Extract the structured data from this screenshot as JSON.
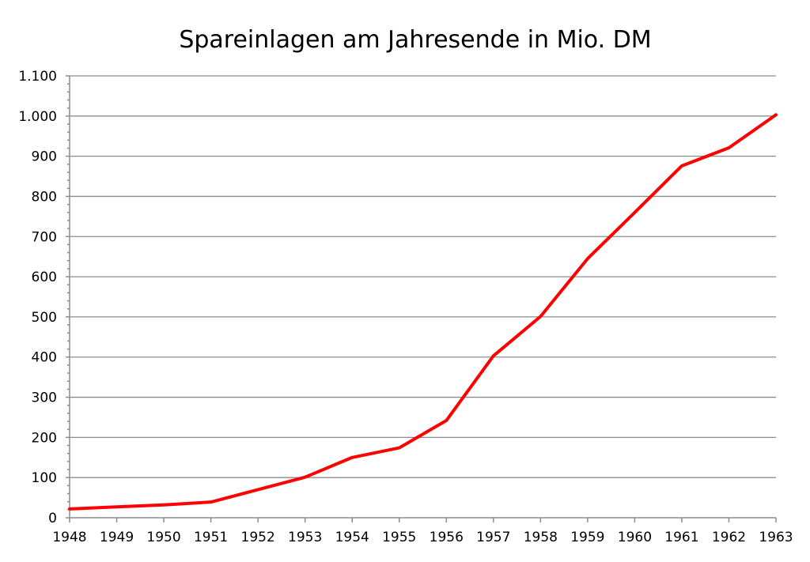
{
  "chart_data": {
    "type": "line",
    "title": "Spareinlagen am Jahresende in Mio. DM",
    "xlabel": "",
    "ylabel": "",
    "x": [
      "1948",
      "1949",
      "1950",
      "1951",
      "1952",
      "1953",
      "1954",
      "1955",
      "1956",
      "1957",
      "1958",
      "1959",
      "1960",
      "1961",
      "1962",
      "1963"
    ],
    "series": [
      {
        "name": "Spareinlagen",
        "color": "#ff0000",
        "values": [
          22,
          27,
          32,
          39,
          70,
          101,
          150,
          174,
          242,
          403,
          501,
          645,
          760,
          876,
          921,
          1003
        ]
      }
    ],
    "ylim": [
      0,
      1100
    ],
    "yticks": [
      0,
      100,
      200,
      300,
      400,
      500,
      600,
      700,
      800,
      900,
      1000,
      1100
    ],
    "ytick_labels": [
      "0",
      "100",
      "200",
      "300",
      "400",
      "500",
      "600",
      "700",
      "800",
      "900",
      "1.000",
      "1.100"
    ],
    "grid": true,
    "legend": "none"
  }
}
